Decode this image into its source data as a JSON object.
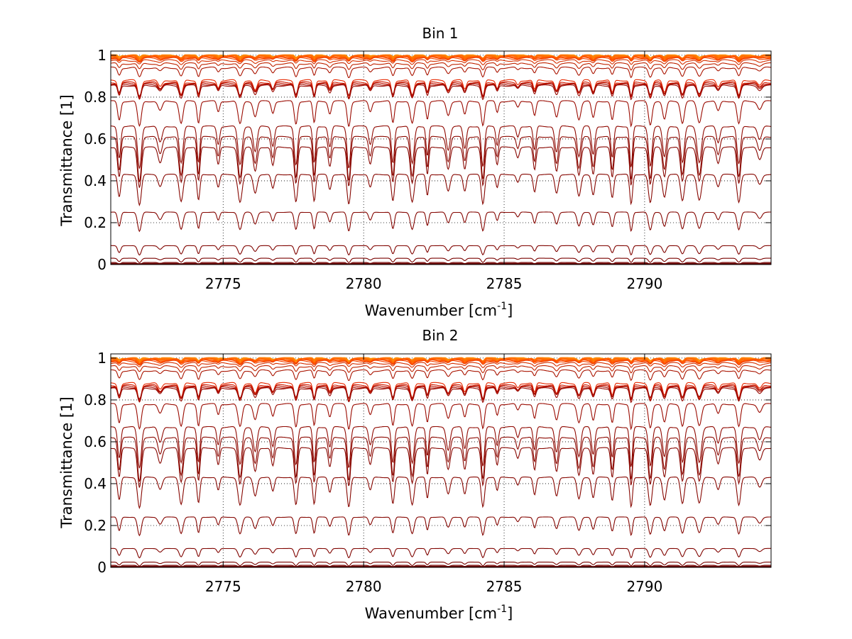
{
  "chart_data": [
    {
      "type": "line",
      "title": "Bin 1",
      "xlabel": "Wavenumber [cm",
      "xlabel_sup": "-1",
      "xlabel_end": "]",
      "ylabel": "Transmittance [1]",
      "xlim": [
        2771,
        2794.5
      ],
      "ylim": [
        0,
        1.02
      ],
      "xticks": [
        2775,
        2780,
        2785,
        2790
      ],
      "xtick_labels": [
        "2775",
        "2780",
        "2785",
        "2790"
      ],
      "yticks": [
        0,
        0.2,
        0.4,
        0.6,
        0.8,
        1
      ],
      "ytick_labels": [
        "0",
        "0.2",
        "0.4",
        "0.6",
        "0.8",
        "1"
      ],
      "grid": true,
      "legend": "none",
      "series_baselines": [
        1.0,
        0.998,
        0.995,
        0.99,
        0.985,
        0.975,
        0.96,
        0.94,
        0.88,
        0.87,
        0.865,
        0.86,
        0.855,
        0.78,
        0.66,
        0.61,
        0.56,
        0.43,
        0.25,
        0.09,
        0.03,
        0.01,
        0.004,
        0.001
      ],
      "series_colors": [
        "#ff8c00",
        "#ff7a00",
        "#ff6a00",
        "#ff5200",
        "#f04000",
        "#d63000",
        "#c02400",
        "#aa1400",
        "#e62800",
        "#d01a00",
        "#bb1200",
        "#a50c00",
        "#990800",
        "#9a0a00",
        "#8f0800",
        "#8c0800",
        "#880600",
        "#860600",
        "#840500",
        "#800400",
        "#7a0300",
        "#750200",
        "#700200",
        "#6b0100"
      ]
    },
    {
      "type": "line",
      "title": "Bin 2",
      "xlabel": "Wavenumber [cm",
      "xlabel_sup": "-1",
      "xlabel_end": "]",
      "ylabel": "Transmittance [1]",
      "xlim": [
        2771,
        2794.5
      ],
      "ylim": [
        0,
        1.02
      ],
      "xticks": [
        2775,
        2780,
        2785,
        2790
      ],
      "xtick_labels": [
        "2775",
        "2780",
        "2785",
        "2790"
      ],
      "yticks": [
        0,
        0.2,
        0.4,
        0.6,
        0.8,
        1
      ],
      "ytick_labels": [
        "0",
        "0.2",
        "0.4",
        "0.6",
        "0.8",
        "1"
      ],
      "grid": true,
      "legend": "none",
      "series_baselines": [
        1.0,
        0.998,
        0.995,
        0.99,
        0.985,
        0.975,
        0.96,
        0.94,
        0.88,
        0.87,
        0.865,
        0.86,
        0.855,
        0.78,
        0.67,
        0.62,
        0.57,
        0.43,
        0.24,
        0.09,
        0.025,
        0.01,
        0.004,
        0.001
      ],
      "series_colors": [
        "#ff8c00",
        "#ff7a00",
        "#ff6a00",
        "#ff5200",
        "#f04000",
        "#d63000",
        "#c02400",
        "#aa1400",
        "#e62800",
        "#d01a00",
        "#bb1200",
        "#a50c00",
        "#990800",
        "#9a0a00",
        "#8f0800",
        "#8c0800",
        "#880600",
        "#860600",
        "#840500",
        "#800400",
        "#7a0300",
        "#750200",
        "#700200",
        "#6b0100"
      ]
    }
  ],
  "colors": {
    "grid": "#000000",
    "axes": "#000000",
    "background": "#ffffff"
  }
}
